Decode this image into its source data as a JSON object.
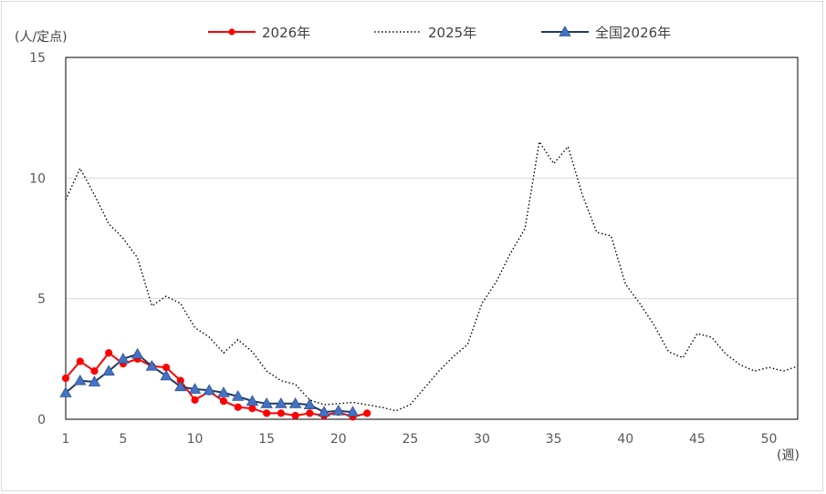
{
  "chart_data": {
    "type": "line",
    "ylabel": "(人/定点)",
    "xlabel": "(週)",
    "ylim": [
      0,
      15
    ],
    "xlim": [
      1,
      52
    ],
    "yticks": [
      0,
      5,
      10,
      15
    ],
    "xticks": [
      1,
      5,
      10,
      15,
      20,
      25,
      30,
      35,
      40,
      45,
      50
    ],
    "grid": true,
    "legend_position": "top",
    "series": [
      {
        "name": "2026年",
        "color": "#ff0000",
        "marker": "circle",
        "line_style": "solid",
        "x": [
          1,
          2,
          3,
          4,
          5,
          6,
          7,
          8,
          9,
          10,
          11,
          12,
          13,
          14,
          15,
          16,
          17,
          18,
          19,
          20,
          21,
          22
        ],
        "values": [
          1.7,
          2.4,
          2.0,
          2.75,
          2.3,
          2.5,
          2.2,
          2.15,
          1.6,
          0.8,
          1.15,
          0.75,
          0.5,
          0.45,
          0.25,
          0.25,
          0.15,
          0.25,
          0.15,
          0.3,
          0.1,
          0.25
        ]
      },
      {
        "name": "2025年",
        "color": "#000000",
        "marker": "none",
        "line_style": "dotted",
        "x": [
          1,
          2,
          3,
          4,
          5,
          6,
          7,
          8,
          9,
          10,
          11,
          12,
          13,
          14,
          15,
          16,
          17,
          18,
          19,
          20,
          21,
          22,
          23,
          24,
          25,
          26,
          27,
          28,
          29,
          30,
          31,
          32,
          33,
          34,
          35,
          36,
          37,
          38,
          39,
          40,
          41,
          42,
          43,
          44,
          45,
          46,
          47,
          48,
          49,
          50,
          51,
          52
        ],
        "values": [
          9.1,
          10.4,
          9.3,
          8.1,
          7.5,
          6.7,
          4.7,
          5.1,
          4.8,
          3.8,
          3.4,
          2.75,
          3.3,
          2.8,
          2.0,
          1.6,
          1.45,
          0.8,
          0.6,
          0.65,
          0.7,
          0.6,
          0.5,
          0.35,
          0.6,
          1.3,
          2.0,
          2.6,
          3.1,
          4.8,
          5.7,
          6.9,
          7.9,
          11.5,
          10.6,
          11.3,
          9.3,
          7.75,
          7.6,
          5.6,
          4.8,
          3.9,
          2.8,
          2.55,
          3.55,
          3.4,
          2.7,
          2.25,
          2.0,
          2.15,
          2.0,
          2.2
        ]
      },
      {
        "name": "全国2026年",
        "color": "#1f3864",
        "marker_color": "#4472c4",
        "marker": "triangle",
        "line_style": "solid",
        "x": [
          1,
          2,
          3,
          4,
          5,
          6,
          7,
          8,
          9,
          10,
          11,
          12,
          13,
          14,
          15,
          16,
          17,
          18,
          19,
          20,
          21
        ],
        "values": [
          1.1,
          1.6,
          1.55,
          2.0,
          2.5,
          2.7,
          2.2,
          1.8,
          1.35,
          1.25,
          1.2,
          1.1,
          0.95,
          0.75,
          0.65,
          0.65,
          0.65,
          0.6,
          0.3,
          0.35,
          0.3
        ]
      }
    ]
  }
}
